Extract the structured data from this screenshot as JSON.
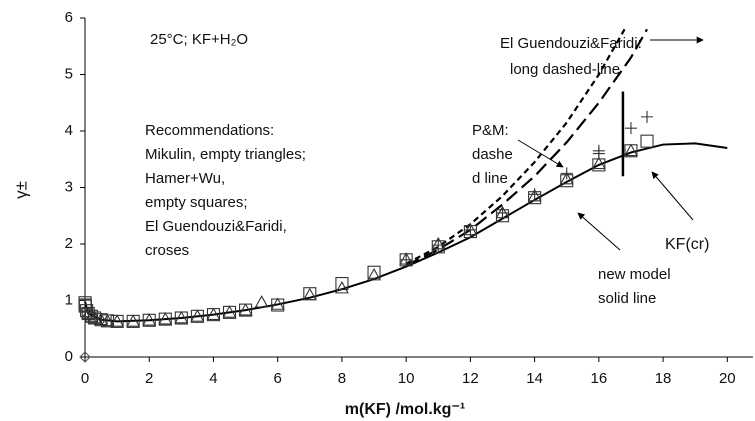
{
  "chart_data": {
    "type": "scatter",
    "x_label": "m(KF) /mol.kg⁻¹",
    "y_label": "γ±",
    "xlim": [
      0,
      20.8
    ],
    "ylim": [
      0,
      6
    ],
    "xticks": [
      0,
      2,
      4,
      6,
      8,
      10,
      12,
      14,
      16,
      18,
      20
    ],
    "yticks": [
      0,
      1,
      2,
      3,
      4,
      5,
      6
    ],
    "annotations": [
      "25°C; KF+H₂O",
      "El Guendouzi&Faridi:",
      "long dashed-line",
      "Recommendations:",
      "Mikulin,  empty triangles;",
      "Hamer+Wu,",
      "empty squares;",
      "El Guendouzi&Faridi,",
      "croses",
      "P&M:",
      "dashe",
      "d line",
      "new model",
      "solid line",
      "KF(cr)"
    ],
    "series": [
      {
        "style": "solid",
        "color": "#000",
        "x": [
          0.001,
          0.1,
          0.5,
          1,
          2,
          3,
          4,
          5,
          6,
          7,
          8,
          9,
          10,
          11,
          12,
          13,
          14,
          15,
          16,
          17,
          18,
          19,
          20
        ],
        "values": [
          0.98,
          0.77,
          0.66,
          0.63,
          0.65,
          0.69,
          0.75,
          0.83,
          0.93,
          1.05,
          1.2,
          1.38,
          1.6,
          1.85,
          2.12,
          2.45,
          2.78,
          3.1,
          3.4,
          3.62,
          3.76,
          3.78,
          3.7
        ]
      },
      {
        "style": "dashed",
        "color": "#000",
        "x": [
          10,
          11,
          12,
          13,
          14,
          15,
          16,
          16.8
        ],
        "values": [
          1.65,
          1.95,
          2.35,
          2.85,
          3.45,
          4.15,
          5.0,
          5.8
        ]
      },
      {
        "style": "long-dashed",
        "color": "#000",
        "x": [
          10,
          11,
          12,
          13,
          14,
          15,
          16,
          17,
          17.5
        ],
        "values": [
          1.62,
          1.9,
          2.25,
          2.7,
          3.2,
          3.8,
          4.5,
          5.3,
          5.8
        ]
      },
      {
        "style": "solubility",
        "color": "#000",
        "x": [
          16.75,
          16.75
        ],
        "values": [
          3.2,
          4.7
        ]
      },
      {
        "style": "triangle",
        "color": "#333",
        "x": [
          0.1,
          0.2,
          0.3,
          0.5,
          0.7,
          1,
          1.5,
          2,
          2.5,
          3,
          3.5,
          4,
          4.5,
          5,
          5.5,
          6,
          7,
          8,
          9,
          10,
          11,
          12,
          13,
          14,
          15,
          16,
          17
        ],
        "values": [
          0.77,
          0.72,
          0.69,
          0.66,
          0.64,
          0.63,
          0.63,
          0.65,
          0.67,
          0.69,
          0.72,
          0.75,
          0.79,
          0.83,
          0.97,
          0.93,
          1.1,
          1.22,
          1.45,
          1.73,
          2.0,
          2.25,
          2.55,
          2.85,
          3.15,
          3.42,
          3.65
        ]
      },
      {
        "style": "square",
        "color": "#333",
        "x": [
          0.001,
          0.005,
          0.01,
          0.05,
          0.1,
          0.2,
          0.3,
          0.5,
          0.7,
          1,
          1.5,
          2,
          2.5,
          3,
          3.5,
          4,
          4.5,
          5,
          6,
          7,
          8,
          9,
          10,
          11,
          12,
          13,
          14,
          15,
          16,
          17,
          17.5
        ],
        "values": [
          0.96,
          0.92,
          0.9,
          0.82,
          0.77,
          0.72,
          0.69,
          0.66,
          0.64,
          0.63,
          0.63,
          0.65,
          0.67,
          0.69,
          0.72,
          0.75,
          0.79,
          0.83,
          0.92,
          1.12,
          1.3,
          1.5,
          1.72,
          1.95,
          2.22,
          2.5,
          2.82,
          3.12,
          3.4,
          3.65,
          3.82
        ]
      },
      {
        "style": "cross",
        "color": "#333",
        "x": [
          10,
          11,
          12,
          13,
          14,
          15,
          16,
          16,
          17,
          17.5
        ],
        "values": [
          1.72,
          1.98,
          2.25,
          2.55,
          2.88,
          3.25,
          3.6,
          3.65,
          4.05,
          4.25
        ]
      },
      {
        "style": "diamond",
        "color": "#555",
        "x": [
          0
        ],
        "values": [
          0
        ]
      }
    ]
  }
}
